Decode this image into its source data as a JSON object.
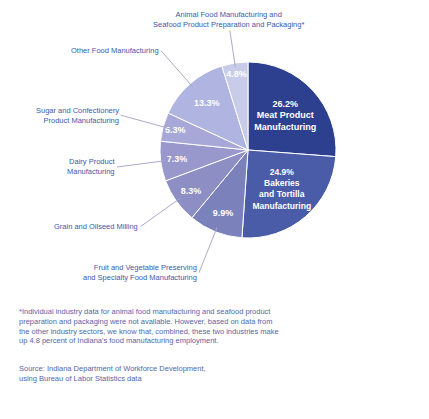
{
  "chart_data": {
    "type": "pie",
    "categories": [
      "Meat Product\nManufacturing",
      "Bakeries\nand Tortilla\nManufacturing",
      "Fruit and Vegetable Preserving\nand Specialty Food Manufacturing",
      "Grain and Oilseed Milling",
      "Dairy Product\nManufacturing",
      "Sugar and Confectionery\nProduct Manufacturing",
      "Other Food Manufacturing",
      "Animal Food Manufacturing and\nSeafood Product Preparation and Packaging*"
    ],
    "values": [
      26.2,
      24.9,
      9.9,
      8.3,
      7.3,
      5.3,
      13.3,
      4.8
    ],
    "value_labels": [
      "26.2%",
      "24.9%",
      "9.9%",
      "8.3%",
      "7.3%",
      "5.3%",
      "13.3%",
      "4.8%"
    ],
    "colors": [
      "#2d3f8f",
      "#4a5ca8",
      "#7b82bb",
      "#8c8ec4",
      "#9898cc",
      "#a8a8d8",
      "#b0b4e0",
      "#c8cce8"
    ],
    "data_labels": true,
    "annotations": [
      "*Individual industry data for animal food manufacturing and seafood product\npreparation and packaging were not available. However, based on data from\nthe other industry sectors, we know that, combined, these two industries make\nup 4.8 percent of Indiana's food manufacturing employment.",
      "Source: Indiana Department of Workforce Development,\nusing Bureau of Labor Statistics data"
    ]
  }
}
